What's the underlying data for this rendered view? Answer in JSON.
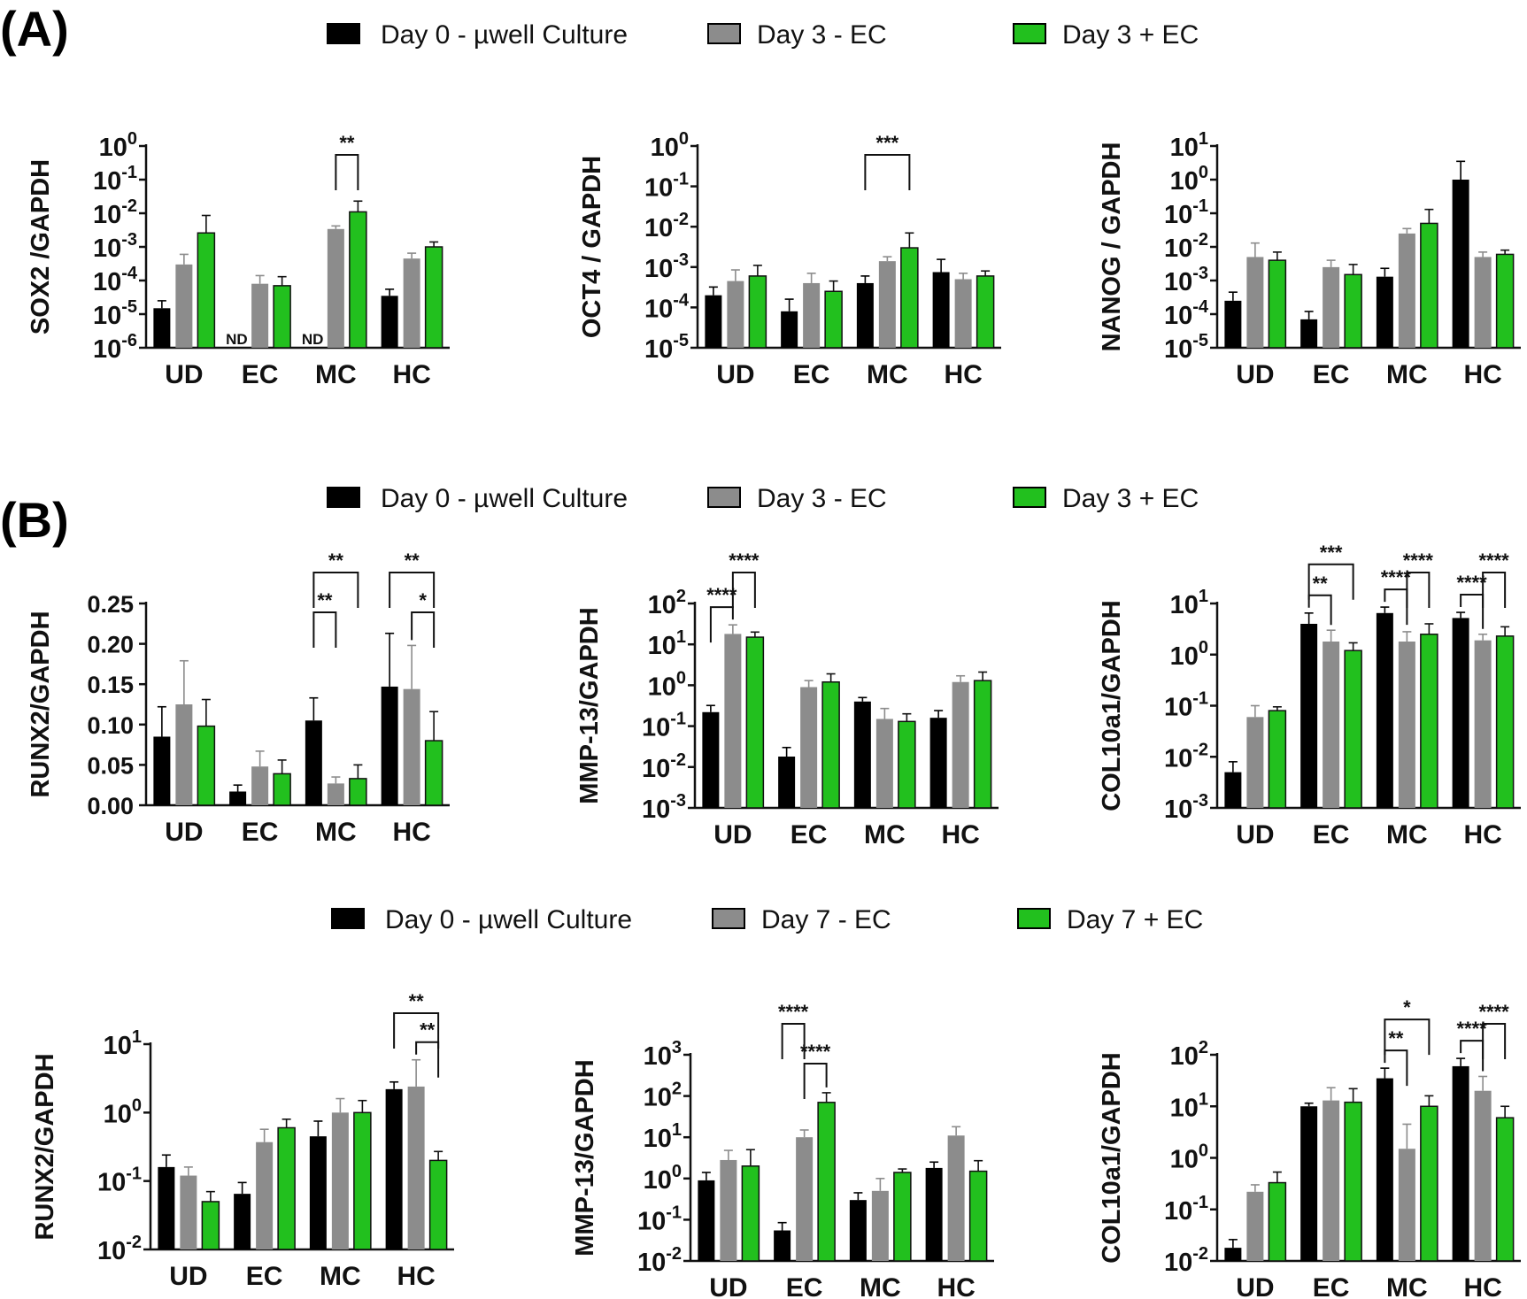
{
  "panel_labels": [
    "(A)",
    "(B)"
  ],
  "legends": [
    {
      "items": [
        {
          "label": "Day 0 - µwell Culture",
          "color": "#000000"
        },
        {
          "label": "Day 3 - EC",
          "color": "#8c8c8c"
        },
        {
          "label": "Day 3 + EC",
          "color": "#22c01e"
        }
      ]
    },
    {
      "items": [
        {
          "label": "Day 0 - µwell Culture",
          "color": "#000000"
        },
        {
          "label": "Day 3 - EC",
          "color": "#8c8c8c"
        },
        {
          "label": "Day 3 + EC",
          "color": "#22c01e"
        }
      ]
    },
    {
      "items": [
        {
          "label": "Day 0 - µwell Culture",
          "color": "#000000"
        },
        {
          "label": "Day 7 - EC",
          "color": "#8c8c8c"
        },
        {
          "label": "Day 7 + EC",
          "color": "#22c01e"
        }
      ]
    }
  ],
  "chart_data": [
    {
      "type": "bar",
      "scale": "log",
      "ylabel": "SOX2 /GAPDH",
      "ylim_exp": [
        -6,
        0
      ],
      "categories": [
        "UD",
        "EC",
        "MC",
        "HC"
      ],
      "series_colors": [
        "#000000",
        "#8c8c8c",
        "#22c01e"
      ],
      "values": [
        [
          1.5e-05,
          0.0003,
          0.0026
        ],
        [
          null,
          8e-05,
          7e-05
        ],
        [
          null,
          0.0034,
          0.011
        ],
        [
          3.5e-05,
          0.00045,
          0.001
        ]
      ],
      "errors": [
        [
          1e-05,
          0.0003,
          0.006
        ],
        [
          null,
          6e-05,
          6e-05
        ],
        [
          null,
          0.0008,
          0.012
        ],
        [
          2e-05,
          0.0002,
          0.0004
        ]
      ],
      "nd_labels": [
        {
          "cat": 1,
          "bar": 0,
          "text": "ND"
        },
        {
          "cat": 2,
          "bar": 0,
          "text": "ND"
        }
      ],
      "significance": [
        {
          "cat": 2,
          "from": 1,
          "to": 2,
          "label": "**",
          "level": 0
        }
      ]
    },
    {
      "type": "bar",
      "scale": "log",
      "ylabel": "OCT4 / GAPDH",
      "ylim_exp": [
        -5,
        0
      ],
      "categories": [
        "UD",
        "EC",
        "MC",
        "HC"
      ],
      "series_colors": [
        "#000000",
        "#8c8c8c",
        "#22c01e"
      ],
      "values": [
        [
          0.0002,
          0.00045,
          0.0006
        ],
        [
          8e-05,
          0.0004,
          0.00025
        ],
        [
          0.0004,
          0.0014,
          0.003
        ],
        [
          0.00075,
          0.0005,
          0.0006
        ]
      ],
      "errors": [
        [
          0.00012,
          0.0004,
          0.0005
        ],
        [
          8e-05,
          0.0003,
          0.0002
        ],
        [
          0.0002,
          0.0004,
          0.004
        ],
        [
          0.0008,
          0.0002,
          0.0002
        ]
      ],
      "significance": [
        {
          "cat": 2,
          "from": 0,
          "to": 2,
          "label": "***",
          "level": 0
        }
      ]
    },
    {
      "type": "bar",
      "scale": "log",
      "ylabel": "NANOG / GAPDH",
      "ylim_exp": [
        -5,
        1
      ],
      "categories": [
        "UD",
        "EC",
        "MC",
        "HC"
      ],
      "series_colors": [
        "#000000",
        "#8c8c8c",
        "#22c01e"
      ],
      "values": [
        [
          0.00025,
          0.005,
          0.004
        ],
        [
          7e-05,
          0.0025,
          0.0015
        ],
        [
          0.0013,
          0.025,
          0.05
        ],
        [
          1.0,
          0.005,
          0.006
        ]
      ],
      "errors": [
        [
          0.0002,
          0.008,
          0.003
        ],
        [
          5e-05,
          0.0015,
          0.0015
        ],
        [
          0.001,
          0.01,
          0.08
        ],
        [
          2.5,
          0.002,
          0.002
        ]
      ],
      "significance": []
    },
    {
      "type": "bar",
      "scale": "linear",
      "ylabel": "RUNX2/GAPDH",
      "ylim": [
        0,
        0.25
      ],
      "yticks": [
        "0.00",
        "0.05",
        "0.10",
        "0.15",
        "0.20",
        "0.25"
      ],
      "categories": [
        "UD",
        "EC",
        "MC",
        "HC"
      ],
      "series_colors": [
        "#000000",
        "#8c8c8c",
        "#22c01e"
      ],
      "values": [
        [
          0.085,
          0.125,
          0.098
        ],
        [
          0.017,
          0.048,
          0.039
        ],
        [
          0.105,
          0.027,
          0.033
        ],
        [
          0.147,
          0.144,
          0.08
        ]
      ],
      "errors": [
        [
          0.037,
          0.054,
          0.033
        ],
        [
          0.008,
          0.019,
          0.017
        ],
        [
          0.028,
          0.008,
          0.017
        ],
        [
          0.066,
          0.054,
          0.036
        ]
      ],
      "significance": [
        {
          "cat": 2,
          "from": 0,
          "to": 1,
          "label": "**",
          "level": 0
        },
        {
          "cat": 2,
          "from": 0,
          "to": 2,
          "label": "**",
          "level": 1
        },
        {
          "cat": 3,
          "from": 1,
          "to": 2,
          "label": "*",
          "level": 0
        },
        {
          "cat": 3,
          "from": 0,
          "to": 2,
          "label": "**",
          "level": 1
        }
      ]
    },
    {
      "type": "bar",
      "scale": "log",
      "ylabel": "MMP-13/GAPDH",
      "ylim_exp": [
        -3,
        2
      ],
      "categories": [
        "UD",
        "EC",
        "MC",
        "HC"
      ],
      "series_colors": [
        "#000000",
        "#8c8c8c",
        "#22c01e"
      ],
      "values": [
        [
          0.22,
          18,
          15
        ],
        [
          0.018,
          0.9,
          1.2
        ],
        [
          0.4,
          0.15,
          0.13
        ],
        [
          0.16,
          1.2,
          1.3
        ]
      ],
      "errors": [
        [
          0.1,
          12,
          5
        ],
        [
          0.012,
          0.4,
          0.7
        ],
        [
          0.1,
          0.12,
          0.07
        ],
        [
          0.08,
          0.5,
          0.8
        ]
      ],
      "significance": [
        {
          "cat": 0,
          "from": 0,
          "to": 1,
          "label": "****",
          "level": 0
        },
        {
          "cat": 0,
          "from": 1,
          "to": 2,
          "label": "****",
          "level": 1
        }
      ]
    },
    {
      "type": "bar",
      "scale": "log",
      "ylabel": "COL10a1/GAPDH",
      "ylim_exp": [
        -3,
        1
      ],
      "categories": [
        "UD",
        "EC",
        "MC",
        "HC"
      ],
      "series_colors": [
        "#000000",
        "#8c8c8c",
        "#22c01e"
      ],
      "values": [
        [
          0.005,
          0.06,
          0.08
        ],
        [
          4.0,
          1.8,
          1.2
        ],
        [
          6.5,
          1.8,
          2.5
        ],
        [
          5.2,
          1.9,
          2.3
        ]
      ],
      "errors": [
        [
          0.003,
          0.04,
          0.015
        ],
        [
          2.5,
          1.2,
          0.5
        ],
        [
          2,
          1,
          1.5
        ],
        [
          1.5,
          0.6,
          1.2
        ]
      ],
      "significance": [
        {
          "cat": 1,
          "from": 0,
          "to": 1,
          "label": "**",
          "level": 0
        },
        {
          "cat": 1,
          "from": 0,
          "to": 2,
          "label": "***",
          "level": 1
        },
        {
          "cat": 2,
          "from": 0,
          "to": 1,
          "label": "****",
          "level": 0
        },
        {
          "cat": 2,
          "from": 1,
          "to": 2,
          "label": "****",
          "level": 1
        },
        {
          "cat": 3,
          "from": 0,
          "to": 1,
          "label": "****",
          "level": 0
        },
        {
          "cat": 3,
          "from": 1,
          "to": 2,
          "label": "****",
          "level": 1
        }
      ]
    },
    {
      "type": "bar",
      "scale": "log",
      "ylabel": "RUNX2/GAPDH",
      "ylim_exp": [
        -2,
        1
      ],
      "categories": [
        "UD",
        "EC",
        "MC",
        "HC"
      ],
      "series_colors": [
        "#000000",
        "#8c8c8c",
        "#22c01e"
      ],
      "values": [
        [
          0.16,
          0.12,
          0.05
        ],
        [
          0.065,
          0.37,
          0.6
        ],
        [
          0.45,
          1.0,
          1.0
        ],
        [
          2.2,
          2.4,
          0.2
        ]
      ],
      "errors": [
        [
          0.08,
          0.04,
          0.02
        ],
        [
          0.03,
          0.2,
          0.2
        ],
        [
          0.3,
          0.6,
          0.5
        ],
        [
          0.6,
          3.5,
          0.07
        ]
      ],
      "significance": [
        {
          "cat": 3,
          "from": 1,
          "to": 2,
          "label": "**",
          "level": 0
        },
        {
          "cat": 3,
          "from": 0,
          "to": 2,
          "label": "**",
          "level": 1
        }
      ]
    },
    {
      "type": "bar",
      "scale": "log",
      "ylabel": "MMP-13/GAPDH",
      "ylim_exp": [
        -2,
        3
      ],
      "categories": [
        "UD",
        "EC",
        "MC",
        "HC"
      ],
      "series_colors": [
        "#000000",
        "#8c8c8c",
        "#22c01e"
      ],
      "values": [
        [
          0.9,
          2.8,
          2.0
        ],
        [
          0.055,
          10,
          70
        ],
        [
          0.3,
          0.5,
          1.4
        ],
        [
          1.8,
          11,
          1.5
        ]
      ],
      "errors": [
        [
          0.5,
          2.0,
          3.0
        ],
        [
          0.03,
          5,
          50
        ],
        [
          0.15,
          0.5,
          0.3
        ],
        [
          0.7,
          7,
          1.2
        ]
      ],
      "significance": [
        {
          "cat": 1,
          "from": 1,
          "to": 2,
          "label": "****",
          "level": 0
        },
        {
          "cat": 1,
          "from": 0,
          "to": 1,
          "label": "****",
          "level": 1
        }
      ]
    },
    {
      "type": "bar",
      "scale": "log",
      "ylabel": "COL10a1/GAPDH",
      "ylim_exp": [
        -2,
        2
      ],
      "categories": [
        "UD",
        "EC",
        "MC",
        "HC"
      ],
      "series_colors": [
        "#000000",
        "#8c8c8c",
        "#22c01e"
      ],
      "values": [
        [
          0.018,
          0.22,
          0.33
        ],
        [
          10,
          13,
          12
        ],
        [
          35,
          1.5,
          10
        ],
        [
          60,
          20,
          6
        ]
      ],
      "errors": [
        [
          0.008,
          0.08,
          0.2
        ],
        [
          1.5,
          10,
          10
        ],
        [
          20,
          3,
          6
        ],
        [
          25,
          18,
          4
        ]
      ],
      "significance": [
        {
          "cat": 2,
          "from": 0,
          "to": 1,
          "label": "**",
          "level": 0
        },
        {
          "cat": 2,
          "from": 0,
          "to": 2,
          "label": "*",
          "level": 1
        },
        {
          "cat": 3,
          "from": 0,
          "to": 1,
          "label": "****",
          "level": 0
        },
        {
          "cat": 3,
          "from": 1,
          "to": 2,
          "label": "****",
          "level": 1
        }
      ]
    }
  ]
}
